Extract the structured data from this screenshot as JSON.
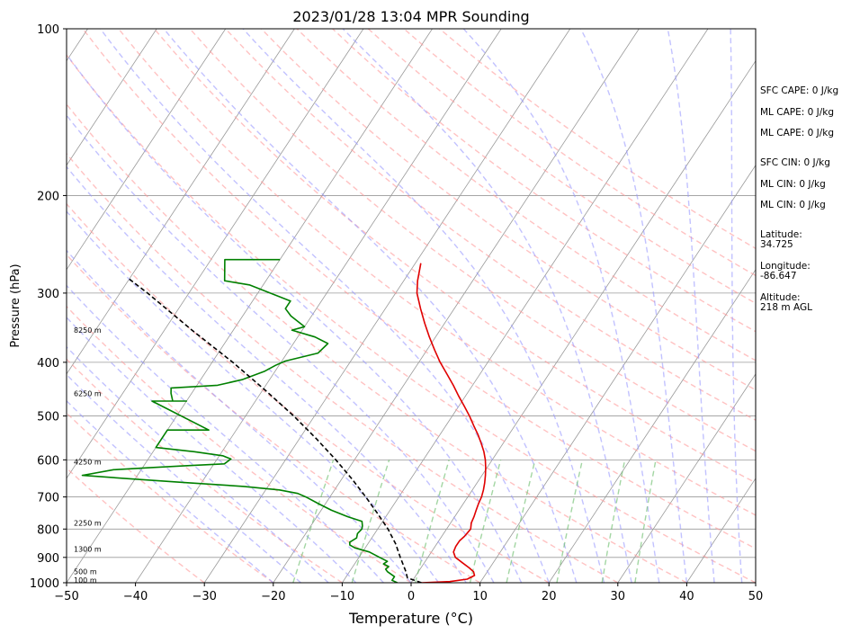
{
  "chart_data": {
    "type": "line",
    "title": "2023/01/28 13:04 MPR Sounding",
    "xlabel": "Temperature (°C)",
    "ylabel": "Pressure (hPa)",
    "xlim": [
      -50,
      50
    ],
    "ylim": [
      1000,
      100
    ],
    "y_scale": "log",
    "skew": "skew-T log-p",
    "x_ticks": [
      -50,
      -40,
      -30,
      -20,
      -10,
      0,
      10,
      20,
      30,
      40,
      50
    ],
    "x_tick_labels": [
      "−50",
      "−40",
      "−30",
      "−20",
      "−10",
      "0",
      "10",
      "20",
      "30",
      "40",
      "50"
    ],
    "y_ticks": [
      1000,
      900,
      800,
      700,
      600,
      500,
      400,
      300,
      200,
      100
    ],
    "y_tick_labels": [
      "1000",
      "900",
      "800",
      "700",
      "600",
      "500",
      "400",
      "300",
      "200",
      "100"
    ],
    "grid": true,
    "series": [
      {
        "role": "temperature",
        "color": "#e00000",
        "points": [
          [
            1000,
            1.5
          ],
          [
            995,
            5.5
          ],
          [
            985,
            7.8
          ],
          [
            970,
            8.5
          ],
          [
            955,
            8.0
          ],
          [
            940,
            7.0
          ],
          [
            920,
            5.5
          ],
          [
            900,
            4.0
          ],
          [
            880,
            3.2
          ],
          [
            860,
            3.0
          ],
          [
            840,
            3.0
          ],
          [
            825,
            3.3
          ],
          [
            800,
            3.5
          ],
          [
            780,
            3.0
          ],
          [
            760,
            2.8
          ],
          [
            740,
            2.5
          ],
          [
            720,
            2.2
          ],
          [
            700,
            2.0
          ],
          [
            680,
            1.6
          ],
          [
            660,
            1.1
          ],
          [
            640,
            0.5
          ],
          [
            620,
            -0.2
          ],
          [
            600,
            -1.0
          ],
          [
            580,
            -2.0
          ],
          [
            560,
            -3.2
          ],
          [
            540,
            -4.5
          ],
          [
            520,
            -6.0
          ],
          [
            500,
            -7.5
          ],
          [
            480,
            -9.2
          ],
          [
            460,
            -11.0
          ],
          [
            440,
            -12.8
          ],
          [
            420,
            -14.8
          ],
          [
            400,
            -16.9
          ],
          [
            380,
            -18.9
          ],
          [
            360,
            -20.9
          ],
          [
            340,
            -22.9
          ],
          [
            320,
            -24.9
          ],
          [
            300,
            -26.9
          ],
          [
            285,
            -28.0
          ],
          [
            265,
            -29.2
          ]
        ]
      },
      {
        "role": "dewpoint",
        "color": "#008000",
        "points": [
          [
            1000,
            -2.0
          ],
          [
            990,
            -3.0
          ],
          [
            975,
            -3.0
          ],
          [
            955,
            -4.5
          ],
          [
            945,
            -5.0
          ],
          [
            935,
            -4.8
          ],
          [
            925,
            -5.8
          ],
          [
            915,
            -5.5
          ],
          [
            900,
            -7.0
          ],
          [
            880,
            -9.0
          ],
          [
            865,
            -11.5
          ],
          [
            855,
            -12.5
          ],
          [
            845,
            -12.8
          ],
          [
            830,
            -12.2
          ],
          [
            815,
            -12.5
          ],
          [
            800,
            -12.3
          ],
          [
            790,
            -12.5
          ],
          [
            775,
            -13.0
          ],
          [
            760,
            -15.5
          ],
          [
            740,
            -18.5
          ],
          [
            720,
            -21.0
          ],
          [
            700,
            -23.5
          ],
          [
            690,
            -25.0
          ],
          [
            680,
            -28.0
          ],
          [
            670,
            -33.5
          ],
          [
            660,
            -42.0
          ],
          [
            650,
            -50.0
          ],
          [
            640,
            -58.0
          ],
          [
            625,
            -54.0
          ],
          [
            620,
            -49.0
          ],
          [
            615,
            -44.0
          ],
          [
            610,
            -38.5
          ],
          [
            598,
            -38.0
          ],
          [
            590,
            -39.5
          ],
          [
            580,
            -44.0
          ],
          [
            570,
            -50.0
          ],
          [
            530,
            -50.0
          ],
          [
            530,
            -44.0
          ],
          [
            470,
            -55.0
          ],
          [
            470,
            -50.0
          ],
          [
            470,
            -52.0
          ],
          [
            455,
            -53.0
          ],
          [
            445,
            -53.5
          ],
          [
            440,
            -47.0
          ],
          [
            430,
            -44.0
          ],
          [
            415,
            -41.5
          ],
          [
            405,
            -40.5
          ],
          [
            398,
            -39.5
          ],
          [
            385,
            -35.5
          ],
          [
            370,
            -35.0
          ],
          [
            360,
            -37.5
          ],
          [
            350,
            -41.5
          ],
          [
            345,
            -40.0
          ],
          [
            330,
            -43.0
          ],
          [
            320,
            -44.5
          ],
          [
            310,
            -44.5
          ],
          [
            290,
            -52.0
          ],
          [
            285,
            -56.0
          ],
          [
            261,
            -58.0
          ],
          [
            261,
            -50.0
          ]
        ]
      },
      {
        "role": "parcel",
        "color": "#000000",
        "dashed": true,
        "points": [
          [
            1000,
            1.5
          ],
          [
            980,
            -1.0
          ],
          [
            950,
            -2.0
          ],
          [
            900,
            -4.0
          ],
          [
            850,
            -6.0
          ],
          [
            800,
            -8.5
          ],
          [
            750,
            -11.5
          ],
          [
            700,
            -14.8
          ],
          [
            650,
            -18.5
          ],
          [
            600,
            -22.7
          ],
          [
            550,
            -27.5
          ],
          [
            500,
            -33.0
          ],
          [
            450,
            -39.5
          ],
          [
            400,
            -47.0
          ],
          [
            350,
            -56.0
          ],
          [
            300,
            -66.0
          ],
          [
            283,
            -70.0
          ]
        ]
      }
    ],
    "height_labels": [
      "100 m",
      "500 m",
      "1300 m",
      "2250 m",
      "4250 m",
      "6250 m",
      "8250 m"
    ],
    "height_label_pressures": [
      988,
      955,
      870,
      780,
      605,
      455,
      350
    ],
    "annotations": [
      {
        "text": "SFC CAPE: 0 J/kg"
      },
      {
        "text": "ML CAPE: 0 J/kg"
      },
      {
        "text": "ML CAPE: 0 J/kg"
      },
      {
        "text": "SFC CIN: 0 J/kg"
      },
      {
        "text": "ML CIN: 0 J/kg"
      },
      {
        "text": "ML CIN: 0 J/kg"
      },
      {
        "label": "Latitude:",
        "value": "34.725"
      },
      {
        "label": "Longitude:",
        "value": "-86.647"
      },
      {
        "label": "Altitude:",
        "value": "218 m AGL"
      }
    ],
    "colors": {
      "dry_adiabat": "#ff9999",
      "moist_adiabat": "#9999ff",
      "mixing_ratio": "#66bb66",
      "isotherm": "#999999",
      "isobar": "#999999"
    }
  }
}
